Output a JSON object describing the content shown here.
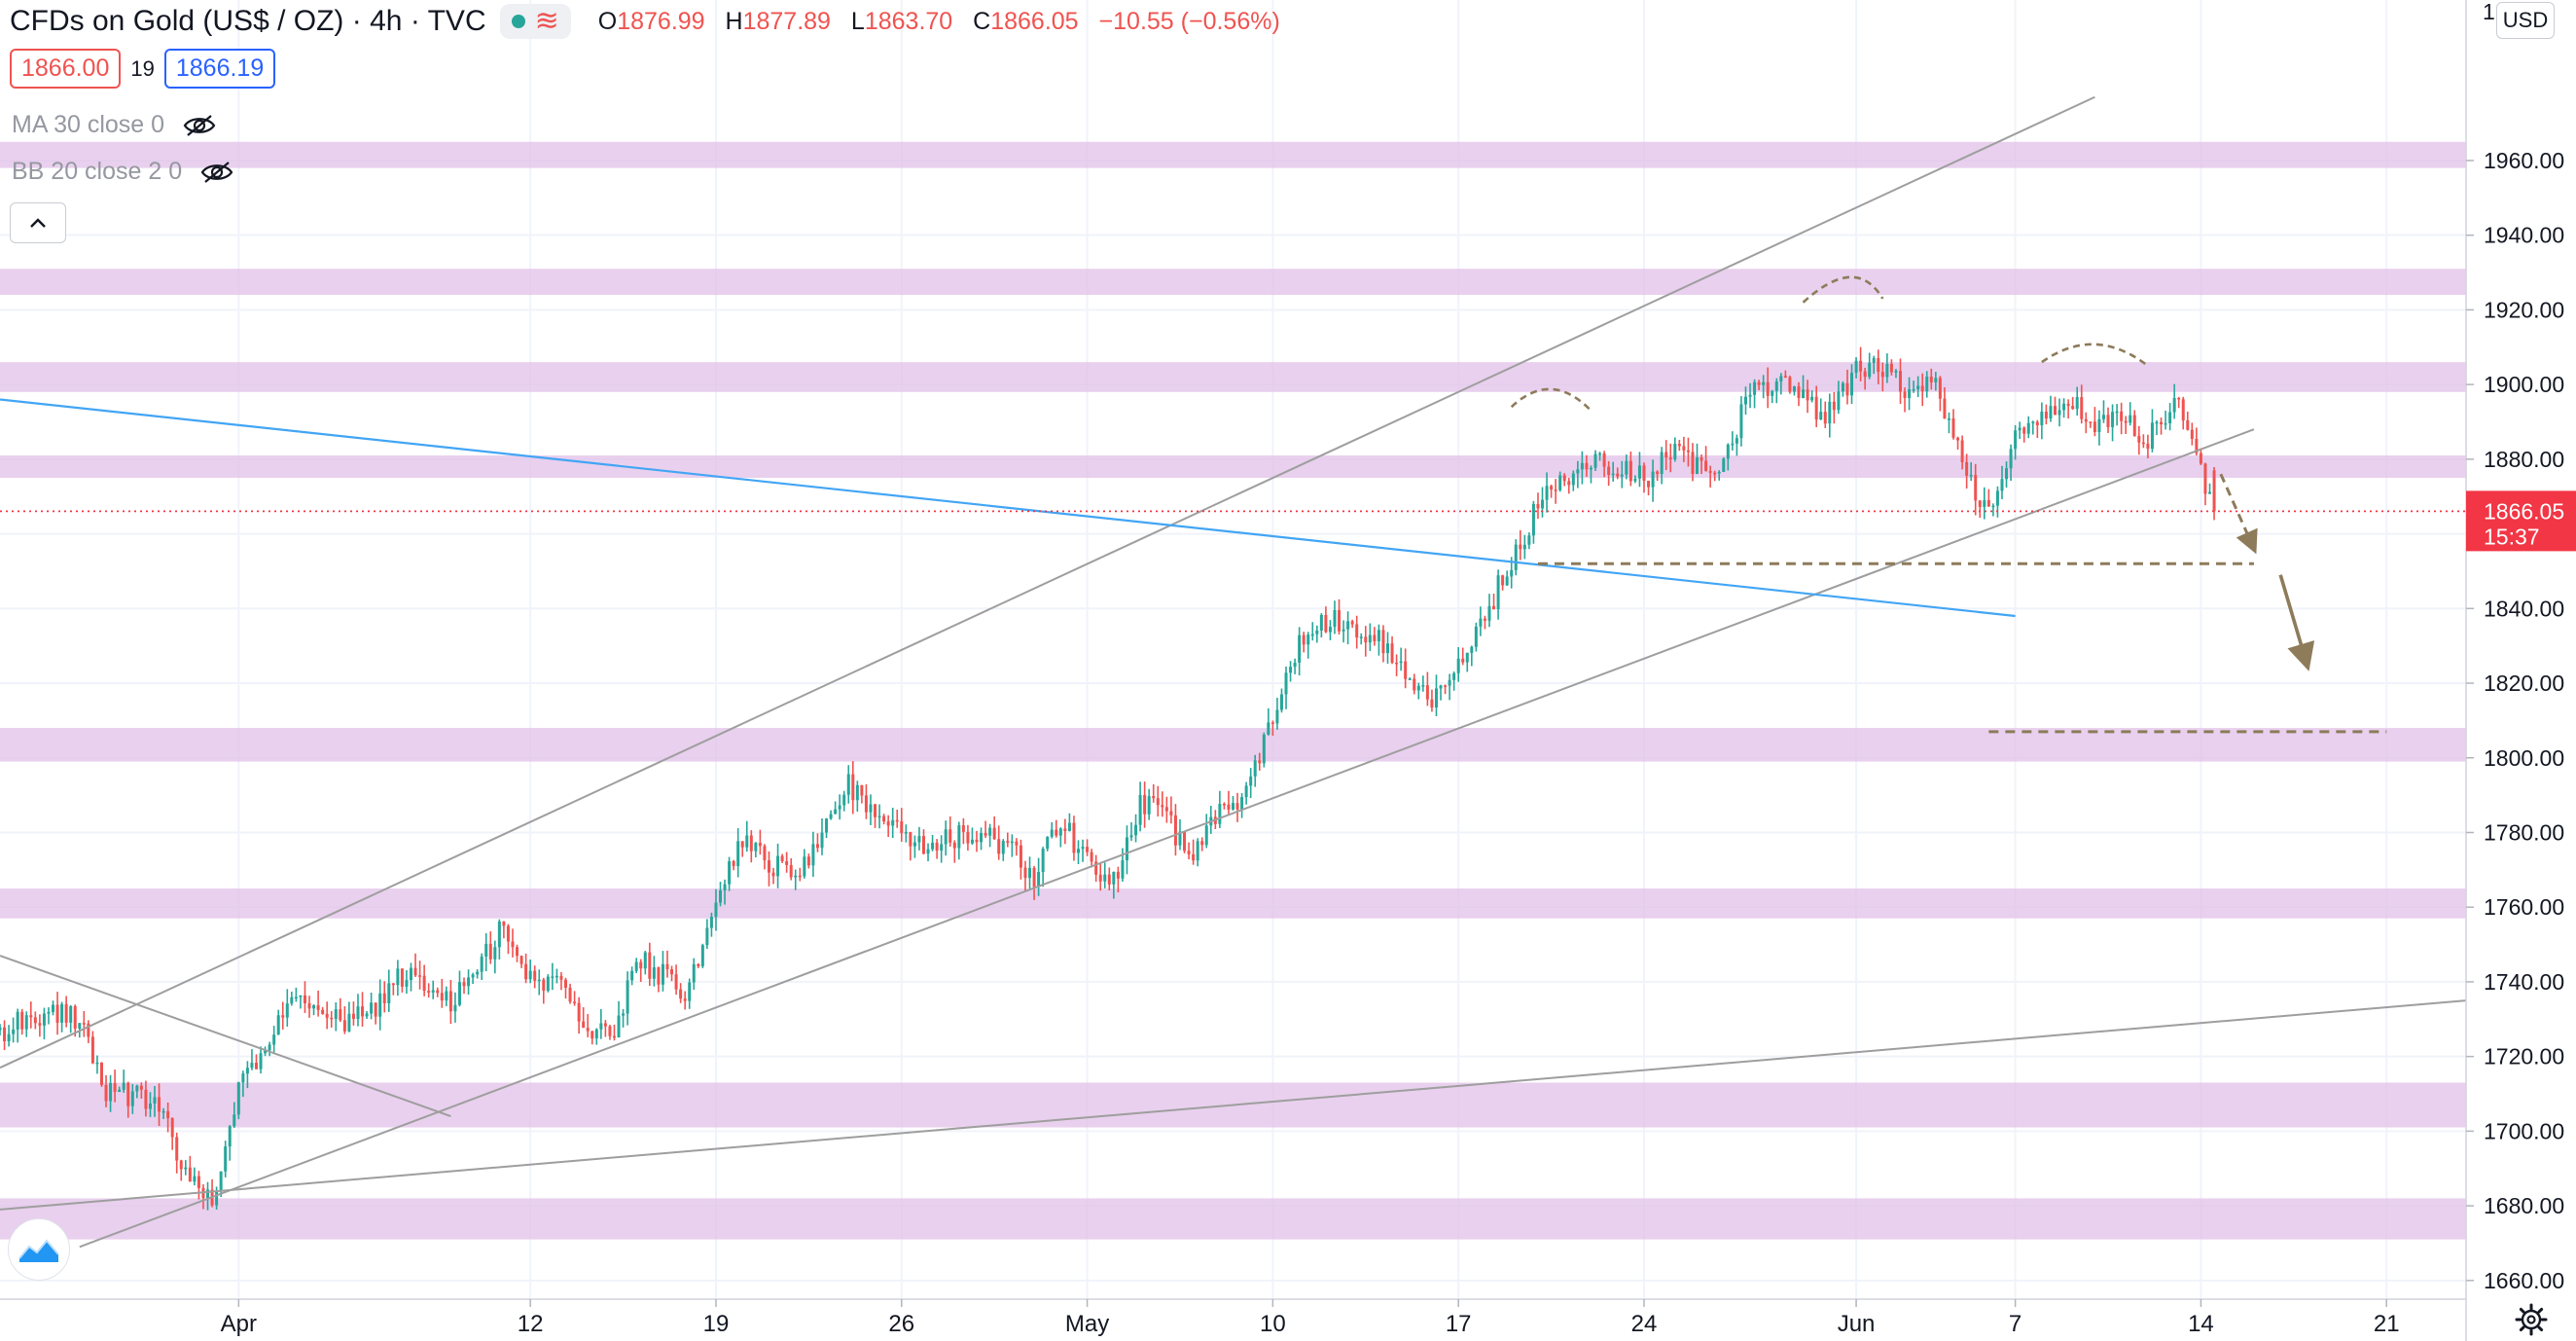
{
  "header": {
    "symbol": "CFDs on Gold (US$ / OZ)",
    "interval": "4h",
    "exchange": "TVC",
    "status_dot_color": "#26a69a",
    "ohlc": [
      {
        "label": "O",
        "value": "1876.99"
      },
      {
        "label": "H",
        "value": "1877.89"
      },
      {
        "label": "L",
        "value": "1863.70"
      },
      {
        "label": "C",
        "value": "1866.05"
      }
    ],
    "change": "−10.55 (−0.56%)"
  },
  "quote": {
    "bid": "1866.00",
    "spread": "19",
    "ask": "1866.19"
  },
  "indicators": [
    {
      "label": "MA 30 close 0"
    },
    {
      "label": "BB 20 close 2 0"
    }
  ],
  "icons": {
    "visibility": "eye-off-icon",
    "collapse": "chevron-up-icon",
    "logo": "tradingview-logo-icon",
    "settings": "gear-icon",
    "series_status": "wave-icon"
  },
  "price_axis": {
    "currency": "USD",
    "top_clip": "1"
  },
  "colors": {
    "up": "#26a69a",
    "down": "#ef5350",
    "zone": "#e1bee7",
    "trendline": "#9e9e9e",
    "blue_trendline": "#42a5f5",
    "drawing": "#8d7b5a",
    "last_price": "#f23645"
  },
  "chart_data": {
    "type": "candlestick",
    "interval": "4h",
    "y_range": [
      1655,
      2003
    ],
    "y_ticks": [
      1660,
      1680,
      1700,
      1720,
      1740,
      1760,
      1780,
      1800,
      1820,
      1840,
      1860,
      1880,
      1900,
      1920,
      1940,
      1960
    ],
    "y_tick_labels": [
      "1660.00",
      "1680.00",
      "1700.00",
      "1720.00",
      "1740.00",
      "1760.00",
      "1780.00",
      "1800.00",
      "1820.00",
      "1840.00",
      "1860.00",
      "1880.00",
      "1900.00",
      "1920.00",
      "1940.00",
      "1960.00"
    ],
    "x_range": [
      "2021-03-23",
      "2021-06-24"
    ],
    "x_ticks": [
      {
        "date": "2021-04-01",
        "label": "Apr"
      },
      {
        "date": "2021-04-12",
        "label": "12"
      },
      {
        "date": "2021-04-19",
        "label": "19"
      },
      {
        "date": "2021-04-26",
        "label": "26"
      },
      {
        "date": "2021-05-03",
        "label": "May"
      },
      {
        "date": "2021-05-10",
        "label": "10"
      },
      {
        "date": "2021-05-17",
        "label": "17"
      },
      {
        "date": "2021-05-24",
        "label": "24"
      },
      {
        "date": "2021-06-01",
        "label": "Jun"
      },
      {
        "date": "2021-06-07",
        "label": "7"
      },
      {
        "date": "2021-06-14",
        "label": "14"
      },
      {
        "date": "2021-06-21",
        "label": "21"
      }
    ],
    "last_price": {
      "value": 1866.05,
      "label": "1866.05",
      "countdown": "15:37"
    },
    "support_resistance_zones": [
      [
        1958,
        1965
      ],
      [
        1924,
        1931
      ],
      [
        1898,
        1906
      ],
      [
        1875,
        1881
      ],
      [
        1799,
        1808
      ],
      [
        1757,
        1765
      ],
      [
        1701,
        1713
      ],
      [
        1671,
        1682
      ]
    ],
    "path": [
      [
        "2021-03-23",
        1727
      ],
      [
        "2021-03-25",
        1733
      ],
      [
        "2021-03-26",
        1730
      ],
      [
        "2021-03-27",
        1711
      ],
      [
        "2021-03-29",
        1708
      ],
      [
        "2021-03-30",
        1688
      ],
      [
        "2021-03-31",
        1681
      ],
      [
        "2021-04-01",
        1710
      ],
      [
        "2021-04-02",
        1723
      ],
      [
        "2021-04-03",
        1735
      ],
      [
        "2021-04-05",
        1729
      ],
      [
        "2021-04-06",
        1731
      ],
      [
        "2021-04-07",
        1742
      ],
      [
        "2021-04-08",
        1740
      ],
      [
        "2021-04-09",
        1733
      ],
      [
        "2021-04-10",
        1744
      ],
      [
        "2021-04-11",
        1755
      ],
      [
        "2021-04-12",
        1742
      ],
      [
        "2021-04-13",
        1739
      ],
      [
        "2021-04-14",
        1730
      ],
      [
        "2021-04-15",
        1724
      ],
      [
        "2021-04-16",
        1746
      ],
      [
        "2021-04-17",
        1742
      ],
      [
        "2021-04-18",
        1737
      ],
      [
        "2021-04-19",
        1764
      ],
      [
        "2021-04-20",
        1778
      ],
      [
        "2021-04-21",
        1771
      ],
      [
        "2021-04-22",
        1769
      ],
      [
        "2021-04-23",
        1780
      ],
      [
        "2021-04-24",
        1793
      ],
      [
        "2021-04-25",
        1786
      ],
      [
        "2021-04-26",
        1780
      ],
      [
        "2021-04-27",
        1776
      ],
      [
        "2021-04-28",
        1779
      ],
      [
        "2021-04-29",
        1781
      ],
      [
        "2021-04-30",
        1776
      ],
      [
        "2021-05-01",
        1768
      ],
      [
        "2021-05-02",
        1783
      ],
      [
        "2021-05-03",
        1773
      ],
      [
        "2021-05-04",
        1767
      ],
      [
        "2021-05-05",
        1789
      ],
      [
        "2021-05-06",
        1783
      ],
      [
        "2021-05-07",
        1774
      ],
      [
        "2021-05-08",
        1785
      ],
      [
        "2021-05-09",
        1790
      ],
      [
        "2021-05-10",
        1810
      ],
      [
        "2021-05-11",
        1830
      ],
      [
        "2021-05-12",
        1837
      ],
      [
        "2021-05-13",
        1836
      ],
      [
        "2021-05-14",
        1832
      ],
      [
        "2021-05-15",
        1822
      ],
      [
        "2021-05-16",
        1815
      ],
      [
        "2021-05-17",
        1826
      ],
      [
        "2021-05-18",
        1838
      ],
      [
        "2021-05-19",
        1853
      ],
      [
        "2021-05-20",
        1868
      ],
      [
        "2021-05-21",
        1873
      ],
      [
        "2021-05-22",
        1880
      ],
      [
        "2021-05-23",
        1878
      ],
      [
        "2021-05-24",
        1875
      ],
      [
        "2021-05-25",
        1881
      ],
      [
        "2021-05-26",
        1879
      ],
      [
        "2021-05-27",
        1880
      ],
      [
        "2021-05-28",
        1897
      ],
      [
        "2021-05-29",
        1901
      ],
      [
        "2021-05-30",
        1896
      ],
      [
        "2021-05-31",
        1892
      ],
      [
        "2021-06-01",
        1903
      ],
      [
        "2021-06-02",
        1905
      ],
      [
        "2021-06-03",
        1897
      ],
      [
        "2021-06-04",
        1901
      ],
      [
        "2021-06-05",
        1879
      ],
      [
        "2021-06-06",
        1865
      ],
      [
        "2021-06-07",
        1887
      ],
      [
        "2021-06-08",
        1892
      ],
      [
        "2021-06-09",
        1896
      ],
      [
        "2021-06-10",
        1890
      ],
      [
        "2021-06-11",
        1891
      ],
      [
        "2021-06-12",
        1885
      ],
      [
        "2021-06-13",
        1896
      ],
      [
        "2021-06-14",
        1876
      ],
      [
        "2021-06-14 12:00",
        1866
      ]
    ]
  }
}
